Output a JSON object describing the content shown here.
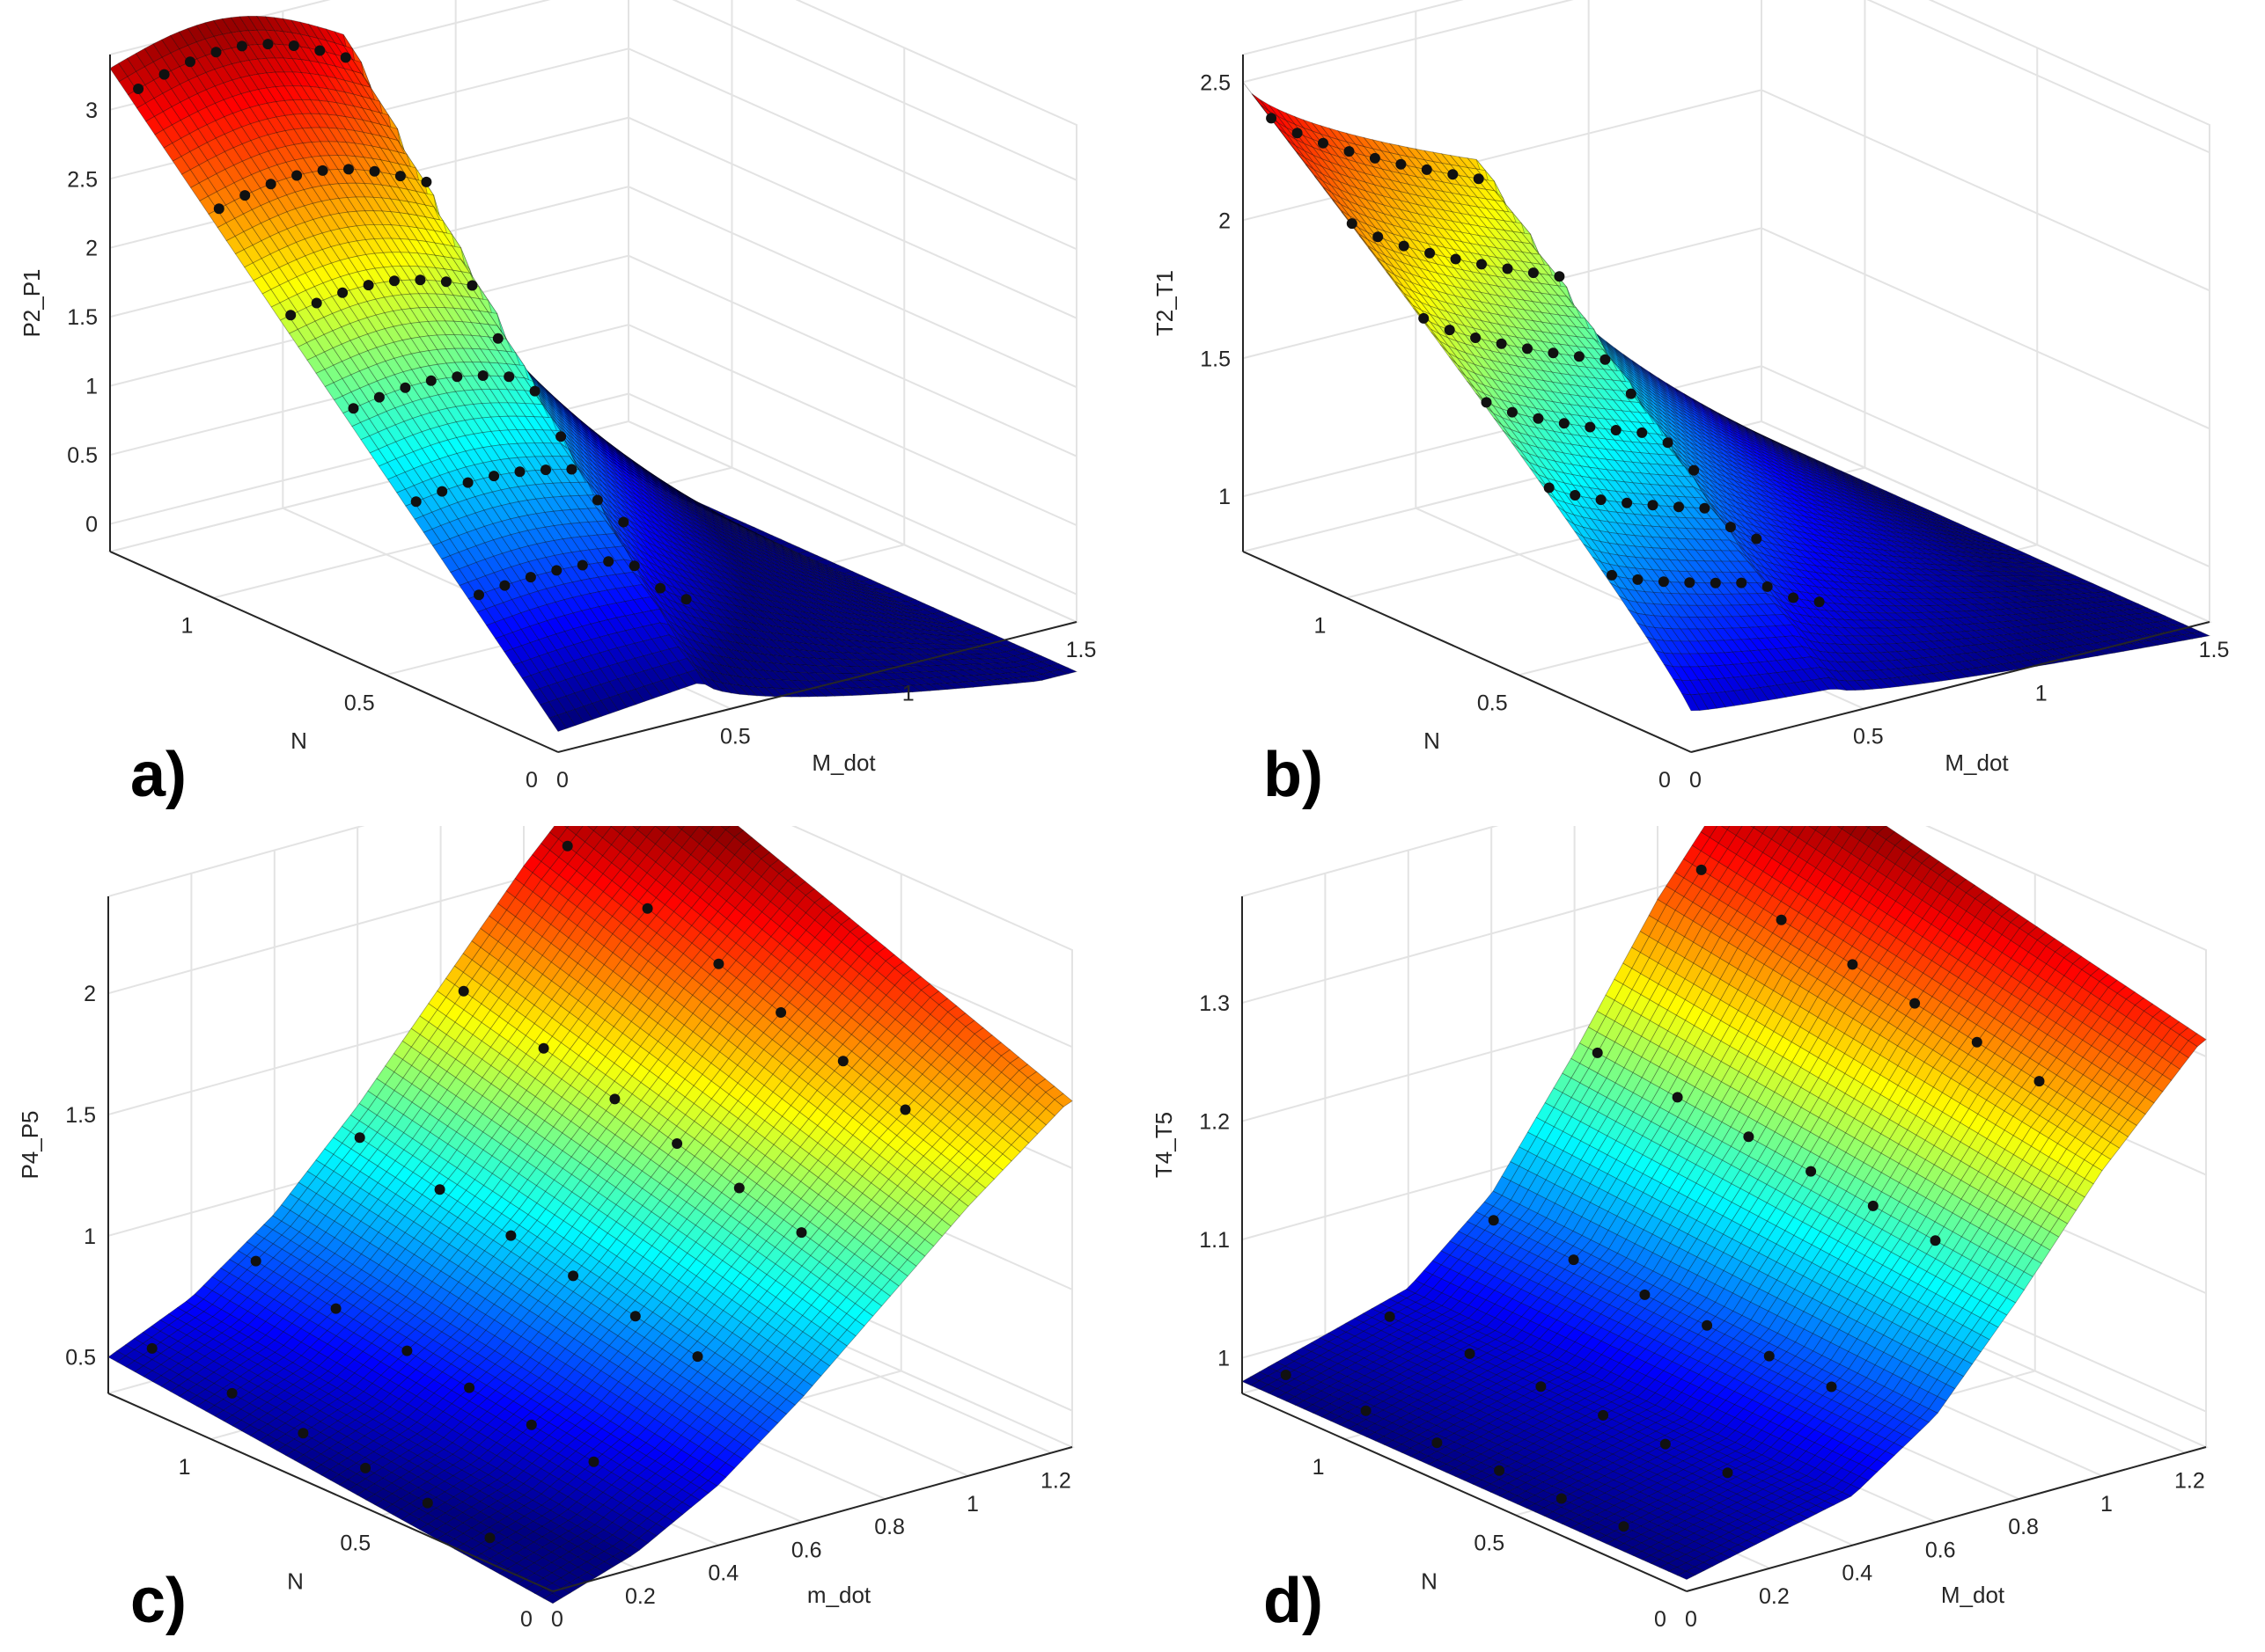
{
  "figure": {
    "description_labels": [
      "a)",
      "b)",
      "c)",
      "d)"
    ]
  },
  "colors": {
    "grid": "#e3e3e3",
    "axis": "#262626",
    "marker": "#111111",
    "colormap": "jet"
  },
  "chart_data": [
    {
      "id": "a",
      "type": "surface",
      "panel_label": "a)",
      "xlabel": "M_dot",
      "ylabel": "N",
      "zlabel": "P2_P1",
      "xlim": [
        0,
        1.5
      ],
      "ylim": [
        0,
        1.3
      ],
      "zlim": [
        -0.2,
        3.4
      ],
      "xticks": [
        "0",
        "0.5",
        "1",
        "1.5"
      ],
      "yticks": [
        "0",
        "0.5",
        "1"
      ],
      "zticks": [
        "0",
        "0.5",
        "1",
        "1.5",
        "2",
        "2.5",
        "3"
      ],
      "grid": true,
      "surface_color_range": [
        0,
        3.5
      ],
      "speedlines_N": [
        1.25,
        1.0,
        0.85,
        0.7,
        0.55,
        0.4
      ],
      "speedline_peak_mdot": [
        0.66,
        0.62,
        0.6,
        0.56,
        0.5,
        0.44
      ],
      "speedline_peak_value": [
        3.05,
        2.45,
        1.65,
        0.95,
        0.4,
        0.1
      ],
      "N_axis_values": [
        1.25,
        1.0,
        0.75,
        0.5,
        0.25,
        0.0
      ],
      "N_axis_pr_at_low_mdot": [
        3.25,
        2.2,
        1.35,
        0.7,
        0.15,
        -0.05
      ]
    },
    {
      "id": "b",
      "type": "surface",
      "panel_label": "b)",
      "xlabel": "M_dot",
      "ylabel": "N",
      "zlabel": "T2_T1",
      "xlim": [
        0,
        1.5
      ],
      "ylim": [
        0,
        1.3
      ],
      "zlim": [
        0.8,
        2.6
      ],
      "xticks": [
        "0",
        "0.5",
        "1",
        "1.5"
      ],
      "yticks": [
        "0",
        "0.5",
        "1"
      ],
      "zticks": [
        "1",
        "1.5",
        "2",
        "2.5"
      ],
      "grid": true,
      "surface_color_range": [
        0.8,
        2.6
      ],
      "speedlines_N": [
        1.25,
        1.0,
        0.85,
        0.7,
        0.55,
        0.4
      ],
      "speedline_peak_mdot": [
        0.66,
        0.62,
        0.6,
        0.56,
        0.5,
        0.44
      ],
      "speedline_peak_value": [
        2.0,
        1.65,
        1.45,
        1.3,
        1.15,
        1.0
      ]
    },
    {
      "id": "c",
      "type": "surface",
      "panel_label": "c)",
      "xlabel": "m_dot",
      "ylabel": "N",
      "zlabel": "P4_P5",
      "xlim": [
        0,
        1.25
      ],
      "ylim": [
        0,
        1.3
      ],
      "zlim": [
        0.35,
        2.4
      ],
      "xticks": [
        "0",
        "0.2",
        "0.4",
        "0.6",
        "0.8",
        "1",
        "1.2"
      ],
      "yticks": [
        "0",
        "0.5",
        "1"
      ],
      "zticks": [
        "0.5",
        "1",
        "1.5",
        "2"
      ],
      "grid": true,
      "surface_color_range": [
        0.4,
        2.3
      ],
      "m_dot_samples": [
        0.0,
        0.2,
        0.4,
        0.6,
        0.8,
        1.0,
        1.2
      ],
      "pressure_ratio_at_sample": [
        0.4,
        0.55,
        0.8,
        1.15,
        1.55,
        1.95,
        2.3
      ]
    },
    {
      "id": "d",
      "type": "surface",
      "panel_label": "d)",
      "xlabel": "M_dot",
      "ylabel": "N",
      "zlabel": "T4_T5",
      "xlim": [
        0,
        1.25
      ],
      "ylim": [
        0,
        1.3
      ],
      "zlim": [
        0.97,
        1.39
      ],
      "xticks": [
        "0",
        "0.2",
        "0.4",
        "0.6",
        "0.8",
        "1",
        "1.2"
      ],
      "yticks": [
        "0",
        "0.5",
        "1"
      ],
      "zticks": [
        "1",
        "1.1",
        "1.2",
        "1.3"
      ],
      "grid": true,
      "surface_color_range": [
        0.98,
        1.38
      ],
      "m_dot_samples": [
        0.0,
        0.2,
        0.4,
        0.6,
        0.8,
        1.0,
        1.2
      ],
      "temperature_ratio_at_sample": [
        0.98,
        1.0,
        1.02,
        1.08,
        1.18,
        1.29,
        1.38
      ]
    }
  ]
}
